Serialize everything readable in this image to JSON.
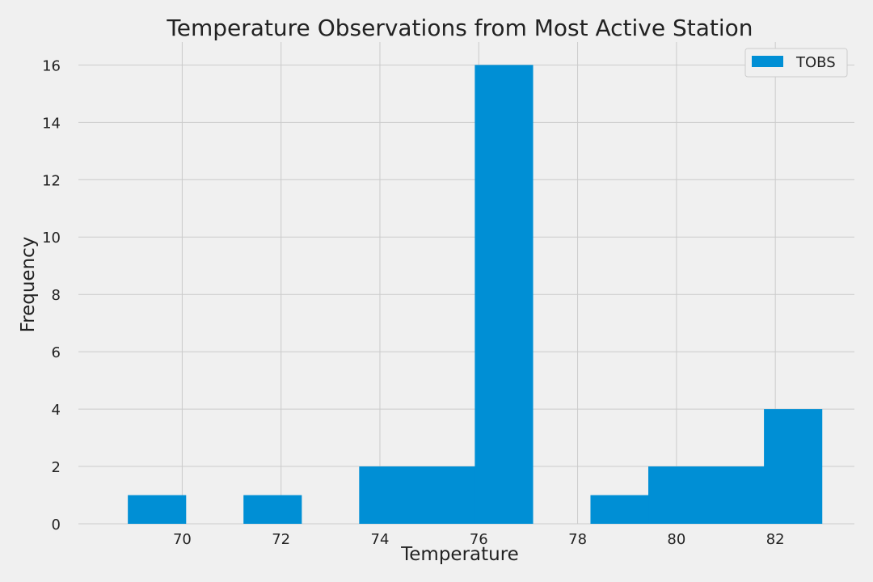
{
  "chart_data": {
    "type": "bar",
    "title": "Temperature Observations from Most Active Station",
    "xlabel": "Temperature",
    "ylabel": "Frequency",
    "bin_edges": [
      68.9,
      70.07,
      71.24,
      72.41,
      73.58,
      74.75,
      75.92,
      77.09,
      78.26,
      79.43,
      80.6,
      81.77,
      82.94
    ],
    "series": [
      {
        "name": "TOBS",
        "values": [
          1,
          0,
          1,
          0,
          2,
          2,
          16,
          0,
          1,
          2,
          2,
          4
        ],
        "color": "#008fd5"
      }
    ],
    "xlim": [
      67.9,
      83.6
    ],
    "ylim": [
      0,
      16.8
    ],
    "x_ticks": [
      70,
      72,
      74,
      76,
      78,
      80,
      82
    ],
    "y_ticks": [
      0,
      2,
      4,
      6,
      8,
      10,
      12,
      14,
      16
    ],
    "grid": true,
    "legend_position": "top-right",
    "background": "#f0f0f0",
    "grid_color": "#cbcbcb"
  }
}
